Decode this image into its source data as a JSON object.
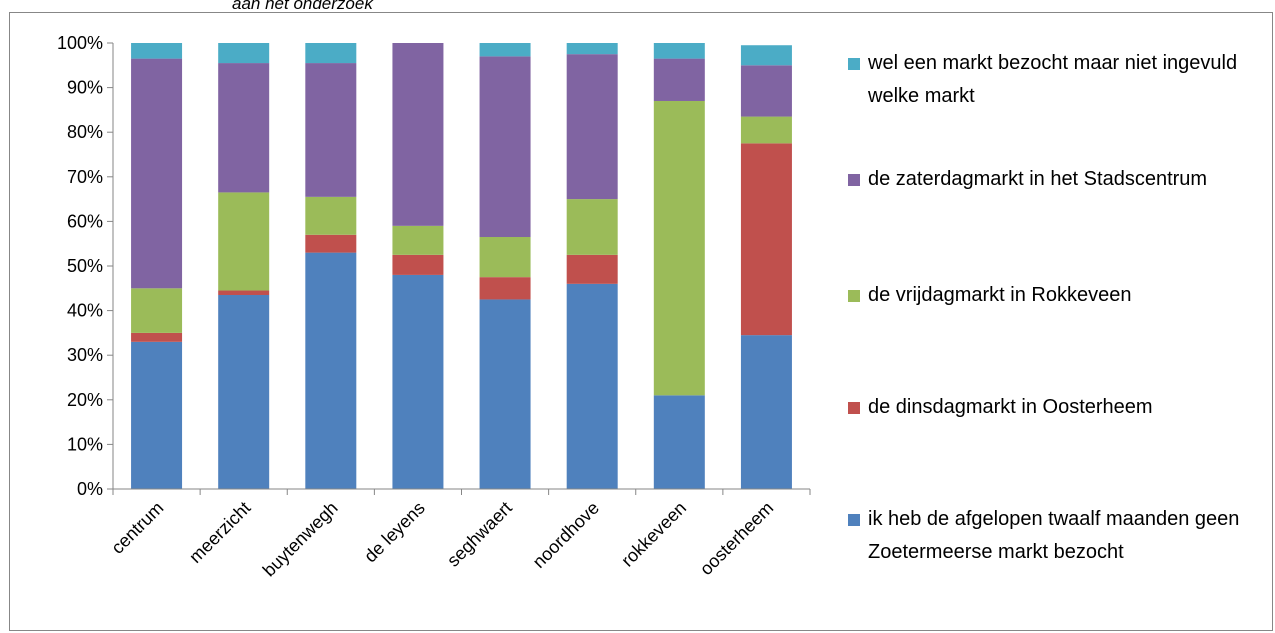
{
  "caption": "aan het onderzoek",
  "chart_data": {
    "type": "bar",
    "stacked": true,
    "categories": [
      "centrum",
      "meerzicht",
      "buytenwegh",
      "de leyens",
      "seghwaert",
      "noordhove",
      "rokkeveen",
      "oosterheem"
    ],
    "series": [
      {
        "name": "ik heb de afgelopen twaalf maanden geen Zoetermeerse markt bezocht",
        "color": "#4F81BD",
        "values": [
          33,
          43.5,
          53,
          48,
          42.5,
          46,
          21,
          34.5
        ]
      },
      {
        "name": "de dinsdagmarkt in Oosterheem",
        "color": "#C0504D",
        "values": [
          2,
          1,
          4,
          4.5,
          5,
          6.5,
          0,
          43
        ]
      },
      {
        "name": "de vrijdagmarkt in Rokkeveen",
        "color": "#9BBB59",
        "values": [
          10,
          22,
          8.5,
          6.5,
          9,
          12.5,
          66,
          6
        ]
      },
      {
        "name": "de zaterdagmarkt in het Stadscentrum",
        "color": "#8064A2",
        "values": [
          51.5,
          29,
          30,
          41,
          40.5,
          32.5,
          9.5,
          11.5
        ]
      },
      {
        "name": "wel een markt bezocht maar niet ingevuld welke markt",
        "color": "#4BACC6",
        "values": [
          3.5,
          4.5,
          4.5,
          0,
          3,
          2.5,
          3.5,
          4.5
        ]
      }
    ],
    "y_ticks": [
      "0%",
      "10%",
      "20%",
      "30%",
      "40%",
      "50%",
      "60%",
      "70%",
      "80%",
      "90%",
      "100%"
    ],
    "ylim": [
      0,
      100
    ],
    "grid": false,
    "legend_position": "right"
  }
}
